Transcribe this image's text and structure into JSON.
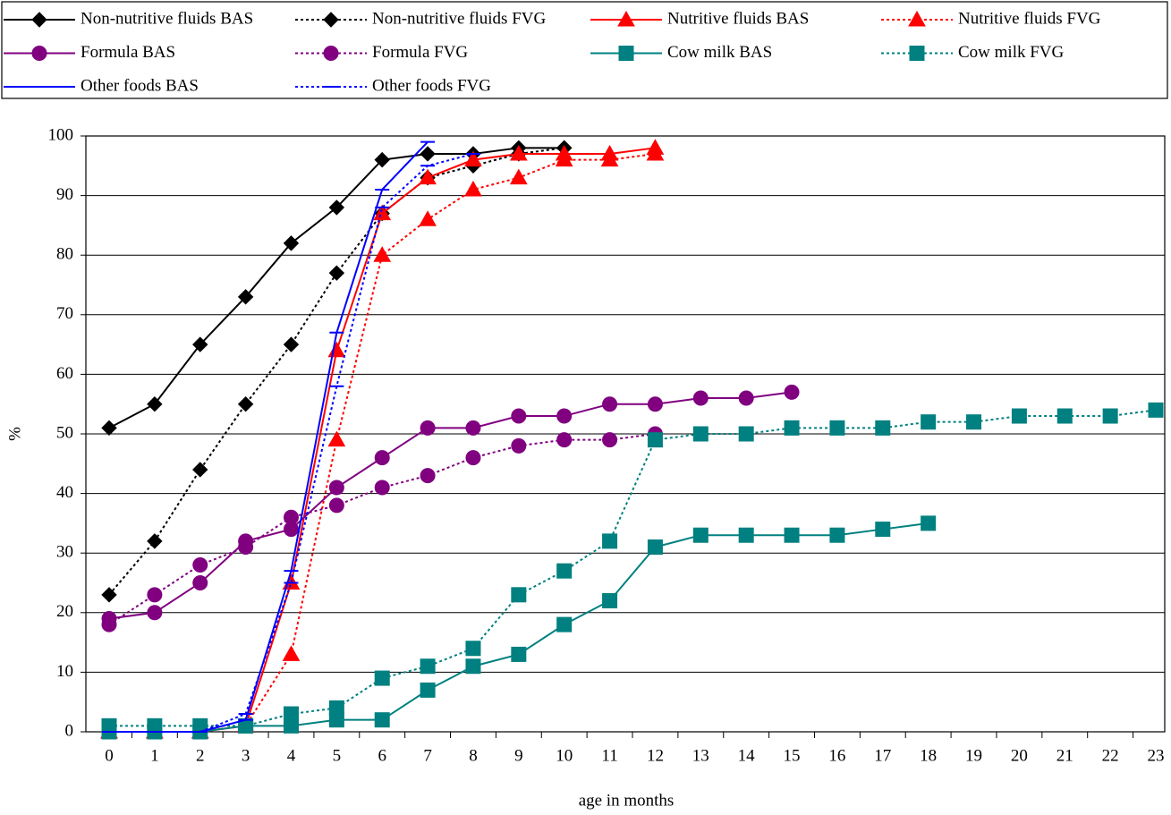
{
  "chart_data": {
    "type": "line",
    "x_label": "age in months",
    "y_label": "%",
    "categories": [
      0,
      1,
      2,
      3,
      4,
      5,
      6,
      7,
      8,
      9,
      10,
      11,
      12,
      13,
      14,
      15,
      16,
      17,
      18,
      19,
      20,
      21,
      22,
      23
    ],
    "ylim": [
      0,
      100
    ],
    "yticks": [
      0,
      10,
      20,
      30,
      40,
      50,
      60,
      70,
      80,
      90,
      100
    ],
    "grid": true,
    "series": [
      {
        "name": "Non-nutritive fluids BAS",
        "color": "#000000",
        "dash": "solid",
        "marker": "diamond",
        "values": [
          51,
          55,
          65,
          73,
          82,
          88,
          96,
          97,
          97,
          98,
          98,
          null,
          null,
          null,
          null,
          null,
          null,
          null,
          null,
          null,
          null,
          null,
          null,
          null
        ]
      },
      {
        "name": "Non-nutritive fluids FVG",
        "color": "#000000",
        "dash": "dotted",
        "marker": "diamond",
        "values": [
          23,
          32,
          44,
          55,
          65,
          77,
          87,
          93,
          95,
          97,
          98,
          null,
          null,
          null,
          null,
          null,
          null,
          null,
          null,
          null,
          null,
          null,
          null,
          null
        ]
      },
      {
        "name": "Nutritive fluids BAS",
        "color": "#ff0000",
        "dash": "solid",
        "marker": "triangle",
        "values": [
          0,
          0,
          0,
          1,
          25,
          64,
          87,
          93,
          96,
          97,
          97,
          97,
          98,
          null,
          null,
          null,
          null,
          null,
          null,
          null,
          null,
          null,
          null,
          null
        ]
      },
      {
        "name": "Nutritive fluids FVG",
        "color": "#ff0000",
        "dash": "dotted",
        "marker": "triangle",
        "values": [
          0,
          0,
          0,
          1,
          13,
          49,
          80,
          86,
          91,
          93,
          96,
          96,
          97,
          null,
          null,
          null,
          null,
          null,
          null,
          null,
          null,
          null,
          null,
          null
        ]
      },
      {
        "name": "Formula BAS",
        "color": "#800080",
        "dash": "solid",
        "marker": "circle",
        "values": [
          19,
          20,
          25,
          32,
          34,
          41,
          46,
          51,
          51,
          53,
          53,
          55,
          55,
          56,
          56,
          57,
          null,
          null,
          null,
          null,
          null,
          null,
          null,
          null
        ]
      },
      {
        "name": "Formula FVG",
        "color": "#800080",
        "dash": "dotted",
        "marker": "circle",
        "values": [
          18,
          23,
          28,
          31,
          36,
          38,
          41,
          43,
          46,
          48,
          49,
          49,
          50,
          null,
          null,
          null,
          null,
          null,
          null,
          null,
          null,
          null,
          null,
          null
        ]
      },
      {
        "name": "Cow milk BAS",
        "color": "#008080",
        "dash": "solid",
        "marker": "square",
        "values": [
          0,
          0,
          0,
          1,
          1,
          2,
          2,
          7,
          11,
          13,
          18,
          22,
          31,
          33,
          33,
          33,
          33,
          34,
          35,
          null,
          null,
          null,
          null,
          null
        ]
      },
      {
        "name": "Cow milk FVG",
        "color": "#008080",
        "dash": "dotted",
        "marker": "square",
        "values": [
          1,
          1,
          1,
          1,
          3,
          4,
          9,
          11,
          14,
          23,
          27,
          32,
          49,
          50,
          50,
          51,
          51,
          51,
          52,
          52,
          53,
          53,
          53,
          54
        ]
      },
      {
        "name": "Other foods BAS",
        "color": "#0000ff",
        "dash": "solid",
        "marker": "dash",
        "values": [
          0,
          0,
          0,
          2,
          27,
          67,
          91,
          99,
          null,
          null,
          null,
          null,
          null,
          null,
          null,
          null,
          null,
          null,
          null,
          null,
          null,
          null,
          null,
          null
        ]
      },
      {
        "name": "Other foods FVG",
        "color": "#0000ff",
        "dash": "dotted",
        "marker": "dash",
        "values": [
          0,
          0,
          0,
          3,
          25,
          58,
          88,
          95,
          97,
          null,
          null,
          null,
          null,
          null,
          null,
          null,
          null,
          null,
          null,
          null,
          null,
          null,
          null,
          null
        ]
      }
    ]
  }
}
